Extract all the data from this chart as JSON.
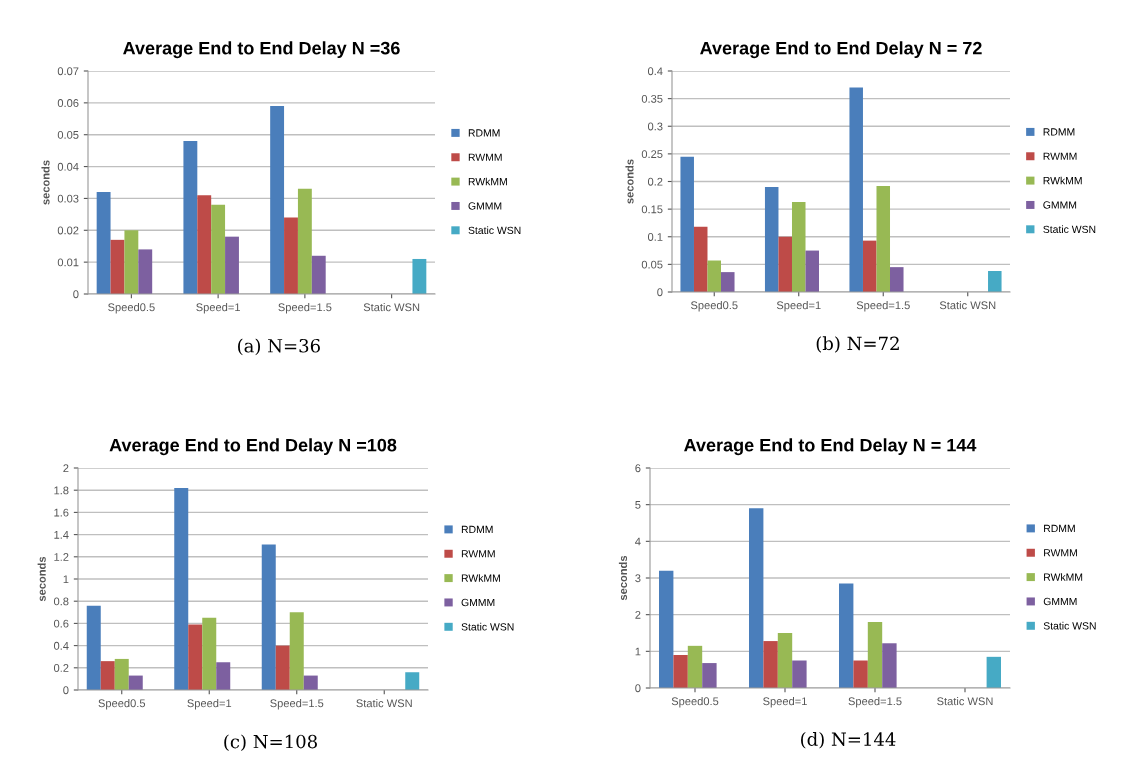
{
  "chart_data": [
    {
      "type": "bar",
      "title": "Average End to End Delay N =36",
      "ylabel": "seconds",
      "categories": [
        "Speed0.5",
        "Speed=1",
        "Speed=1.5",
        "Static WSN"
      ],
      "series": [
        {
          "name": "RDMM",
          "color": "#4a7ebb",
          "values": [
            0.032,
            0.048,
            0.059,
            null
          ]
        },
        {
          "name": "RWMM",
          "color": "#be4b48",
          "values": [
            0.017,
            0.031,
            0.024,
            null
          ]
        },
        {
          "name": "RWkMM",
          "color": "#98b954",
          "values": [
            0.02,
            0.028,
            0.033,
            null
          ]
        },
        {
          "name": "GMMM",
          "color": "#7d60a0",
          "values": [
            0.014,
            0.018,
            0.012,
            null
          ]
        },
        {
          "name": "Static WSN",
          "color": "#46aac5",
          "values": [
            null,
            null,
            null,
            0.011
          ]
        }
      ],
      "ylim": [
        0,
        0.07
      ],
      "yticks": [
        0,
        0.01,
        0.02,
        0.03,
        0.04,
        0.05,
        0.06,
        0.07
      ],
      "grid": "y",
      "legend": "right",
      "annotations": [
        "(a) N=36"
      ]
    },
    {
      "type": "bar",
      "title": "Average End to End Delay N = 72",
      "ylabel": "seconds",
      "categories": [
        "Speed0.5",
        "Speed=1",
        "Speed=1.5",
        "Static WSN"
      ],
      "series": [
        {
          "name": "RDMM",
          "color": "#4a7ebb",
          "values": [
            0.245,
            0.19,
            0.37,
            null
          ]
        },
        {
          "name": "RWMM",
          "color": "#be4b48",
          "values": [
            0.118,
            0.1,
            0.093,
            null
          ]
        },
        {
          "name": "RWkMM",
          "color": "#98b954",
          "values": [
            0.057,
            0.163,
            0.192,
            null
          ]
        },
        {
          "name": "GMMM",
          "color": "#7d60a0",
          "values": [
            0.036,
            0.075,
            0.045,
            null
          ]
        },
        {
          "name": "Static WSN",
          "color": "#46aac5",
          "values": [
            null,
            null,
            null,
            0.038
          ]
        }
      ],
      "ylim": [
        0,
        0.4
      ],
      "yticks": [
        0,
        0.05,
        0.1,
        0.15,
        0.2,
        0.25,
        0.3,
        0.35,
        0.4
      ],
      "grid": "y",
      "legend": "right",
      "annotations": [
        "(b) N=72"
      ]
    },
    {
      "type": "bar",
      "title": "Average End to End Delay N =108",
      "ylabel": "seconds",
      "categories": [
        "Speed0.5",
        "Speed=1",
        "Speed=1.5",
        "Static WSN"
      ],
      "series": [
        {
          "name": "RDMM",
          "color": "#4a7ebb",
          "values": [
            0.76,
            1.82,
            1.31,
            null
          ]
        },
        {
          "name": "RWMM",
          "color": "#be4b48",
          "values": [
            0.26,
            0.59,
            0.4,
            null
          ]
        },
        {
          "name": "RWkMM",
          "color": "#98b954",
          "values": [
            0.28,
            0.65,
            0.7,
            null
          ]
        },
        {
          "name": "GMMM",
          "color": "#7d60a0",
          "values": [
            0.13,
            0.25,
            0.13,
            null
          ]
        },
        {
          "name": "Static WSN",
          "color": "#46aac5",
          "values": [
            null,
            null,
            null,
            0.16
          ]
        }
      ],
      "ylim": [
        0,
        2
      ],
      "yticks": [
        0,
        0.2,
        0.4,
        0.6,
        0.8,
        1,
        1.2,
        1.4,
        1.6,
        1.8,
        2
      ],
      "grid": "y",
      "legend": "right",
      "annotations": [
        "(c) N=108"
      ]
    },
    {
      "type": "bar",
      "title": "Average End to End Delay N = 144",
      "ylabel": "seconds",
      "categories": [
        "Speed0.5",
        "Speed=1",
        "Speed=1.5",
        "Static WSN"
      ],
      "series": [
        {
          "name": "RDMM",
          "color": "#4a7ebb",
          "values": [
            3.2,
            4.9,
            2.85,
            null
          ]
        },
        {
          "name": "RWMM",
          "color": "#be4b48",
          "values": [
            0.9,
            1.28,
            0.75,
            null
          ]
        },
        {
          "name": "RWkMM",
          "color": "#98b954",
          "values": [
            1.15,
            1.5,
            1.8,
            null
          ]
        },
        {
          "name": "GMMM",
          "color": "#7d60a0",
          "values": [
            0.68,
            0.75,
            1.22,
            null
          ]
        },
        {
          "name": "Static WSN",
          "color": "#46aac5",
          "values": [
            null,
            null,
            null,
            0.85
          ]
        }
      ],
      "ylim": [
        0,
        6
      ],
      "yticks": [
        0,
        1,
        2,
        3,
        4,
        5,
        6
      ],
      "grid": "y",
      "legend": "right",
      "annotations": [
        "(d) N=144"
      ]
    }
  ]
}
